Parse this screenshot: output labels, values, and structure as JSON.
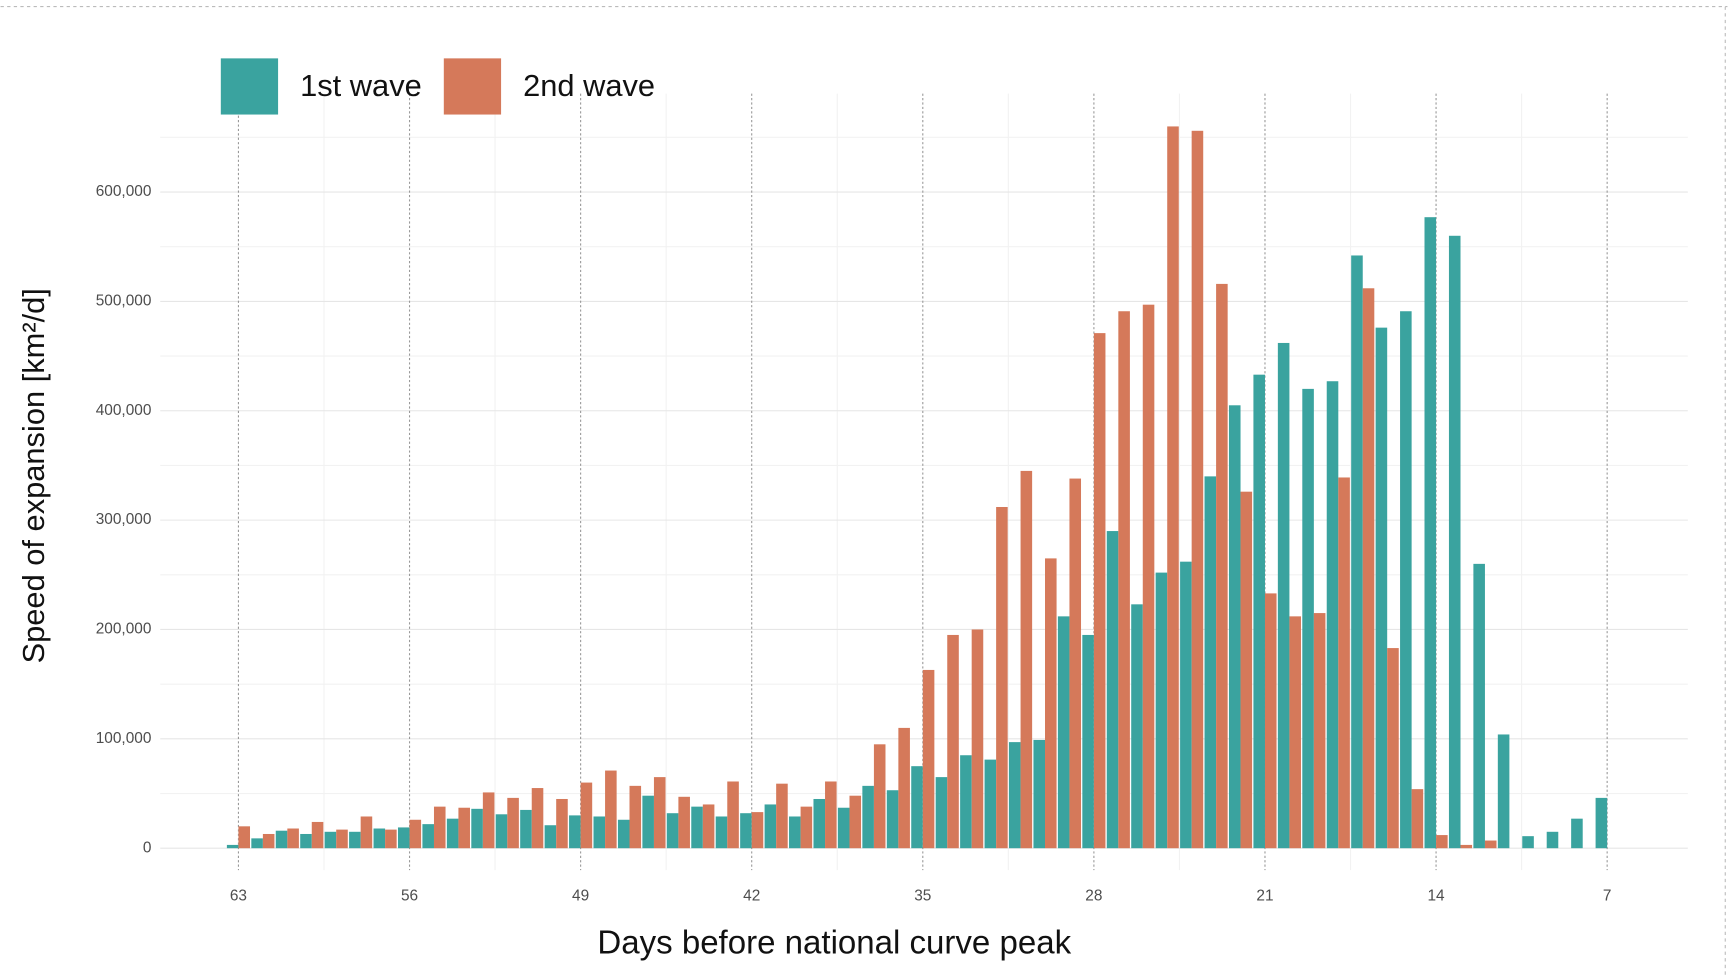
{
  "chart_data": {
    "type": "bar",
    "x_label": "Days before national curve peak",
    "y_label": "Speed of expansion [km²/d]",
    "x": [
      63,
      62,
      61,
      60,
      59,
      58,
      57,
      56,
      55,
      54,
      53,
      52,
      51,
      50,
      49,
      48,
      47,
      46,
      45,
      44,
      43,
      42,
      41,
      40,
      39,
      38,
      37,
      36,
      35,
      34,
      33,
      32,
      31,
      30,
      29,
      28,
      27,
      26,
      25,
      24,
      23,
      22,
      21,
      20,
      19,
      18,
      17,
      16,
      15,
      14,
      13,
      12,
      11,
      10,
      9,
      8,
      7
    ],
    "series": [
      {
        "name": "1st wave",
        "color": "#3aa39f",
        "values": [
          3000,
          9000,
          16000,
          13000,
          15000,
          15000,
          18000,
          19000,
          22000,
          27000,
          36000,
          31000,
          35000,
          21000,
          30000,
          29000,
          26000,
          48000,
          32000,
          38000,
          29000,
          32000,
          40000,
          29000,
          45000,
          37000,
          57000,
          53000,
          75000,
          65000,
          85000,
          81000,
          97000,
          99000,
          212000,
          195000,
          290000,
          223000,
          252000,
          262000,
          340000,
          405000,
          433000,
          462000,
          420000,
          427000,
          542000,
          476000,
          491000,
          577000,
          560000,
          260000,
          104000,
          11000,
          15000,
          27000,
          46000
        ]
      },
      {
        "name": "2nd wave",
        "color": "#d5795a",
        "values": [
          20000,
          13000,
          18000,
          24000,
          17000,
          29000,
          17000,
          26000,
          38000,
          37000,
          51000,
          46000,
          55000,
          45000,
          60000,
          71000,
          57000,
          65000,
          47000,
          40000,
          61000,
          33000,
          59000,
          38000,
          61000,
          48000,
          95000,
          110000,
          163000,
          195000,
          200000,
          312000,
          345000,
          265000,
          338000,
          471000,
          491000,
          497000,
          660000,
          656000,
          516000,
          326000,
          233000,
          212000,
          215000,
          339000,
          512000,
          183000,
          54000,
          12000,
          3000,
          7000,
          null,
          null,
          null,
          null,
          null
        ]
      }
    ],
    "xlim": [
      66.2,
      3.7
    ],
    "xticks": [
      63,
      56,
      49,
      42,
      35,
      28,
      21,
      14,
      7
    ],
    "ylim": [
      -20000,
      690000
    ],
    "yticks": [
      0,
      {
        "value": 100000,
        "label": "100,000"
      },
      {
        "value": 200000,
        "label": "200,000"
      },
      {
        "value": 300000,
        "label": "300,000"
      },
      {
        "value": 400000,
        "label": "400,000"
      },
      {
        "value": 500000,
        "label": "500,000"
      },
      {
        "value": 600000,
        "label": "600,000"
      }
    ],
    "grid": true,
    "legend": "top-left"
  }
}
